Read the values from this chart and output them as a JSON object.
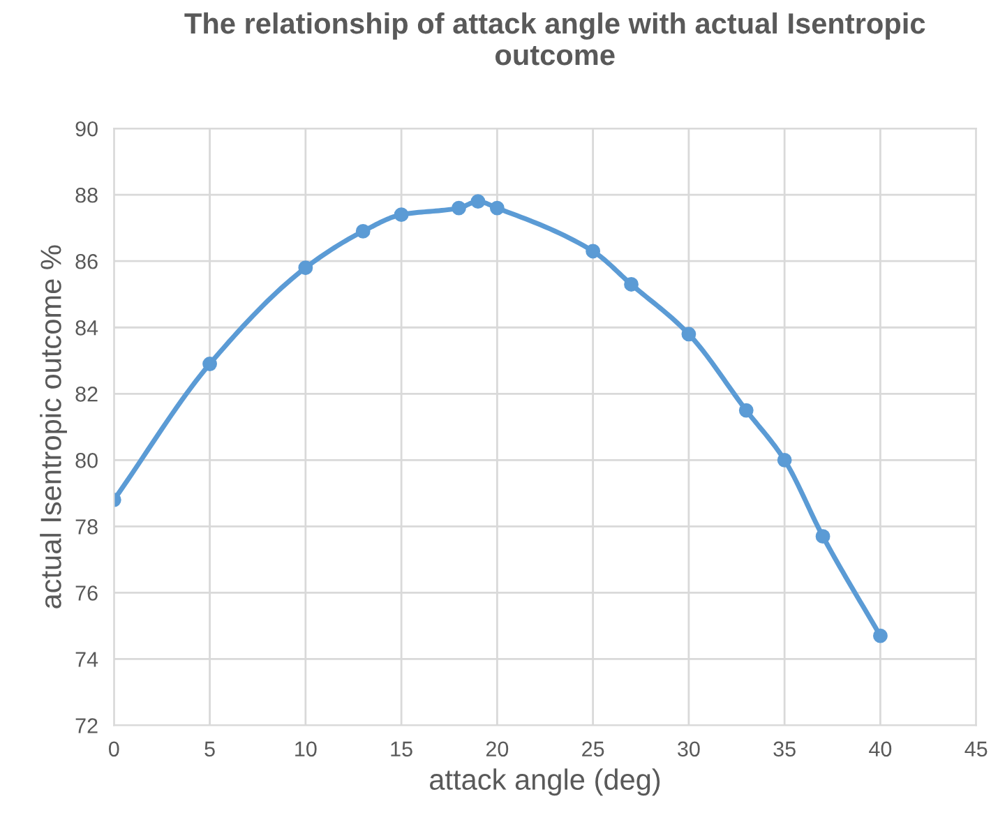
{
  "chart_data": {
    "type": "line",
    "title": "The relationship of attack angle with actual Isentropic outcome",
    "xlabel": "attack angle (deg)",
    "ylabel": "actual Isentropic outcome %",
    "series": [
      {
        "color": "#5b9bd5",
        "x": [
          0,
          5,
          10,
          13,
          15,
          18,
          19,
          20,
          25,
          27,
          30,
          33,
          35,
          37,
          40
        ],
        "values": [
          78.8,
          82.9,
          85.8,
          86.9,
          87.4,
          87.6,
          87.8,
          87.6,
          86.3,
          85.3,
          83.8,
          81.5,
          80.0,
          77.7,
          74.7
        ]
      }
    ],
    "xlim": [
      0,
      45
    ],
    "xticks": [
      0,
      5,
      10,
      15,
      20,
      25,
      30,
      35,
      40,
      45
    ],
    "ylim": [
      72,
      90
    ],
    "yticks": [
      72,
      74,
      76,
      78,
      80,
      82,
      84,
      86,
      88,
      90
    ],
    "grid": true,
    "legend": false,
    "marker": "circle",
    "line_style": "solid"
  }
}
